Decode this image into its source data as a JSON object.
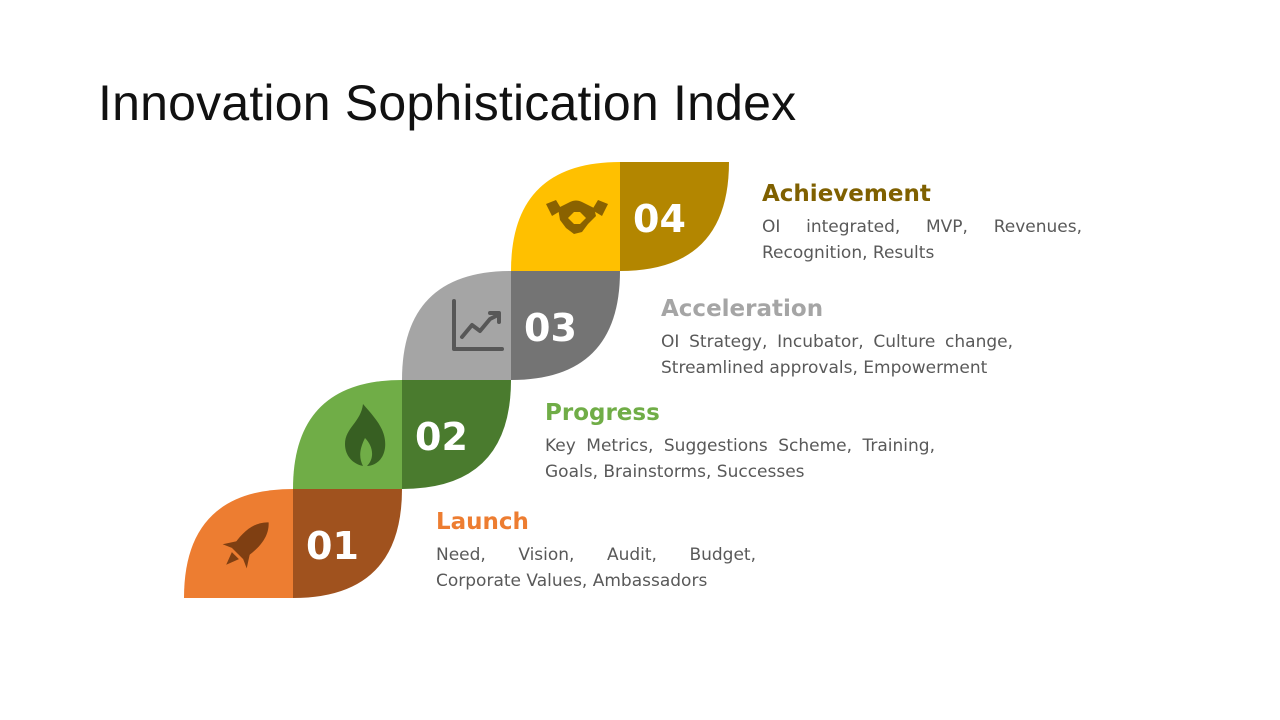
{
  "title": "Innovation Sophistication Index",
  "steps": [
    {
      "number": "01",
      "heading": "Launch",
      "description": "Need, Vision, Audit, Budget, Corporate Values, Ambassadors",
      "icon": "rocket-icon",
      "colors": {
        "left": "#ED7D31",
        "right": "#A0521E",
        "icon": "#7F3F12",
        "heading": "#ED7D31"
      }
    },
    {
      "number": "02",
      "heading": "Progress",
      "description": "Key Metrics, Suggestions Scheme, Training, Goals, Brainstorms, Successes",
      "icon": "flame-icon",
      "colors": {
        "left": "#70AD47",
        "right": "#4A7B2E",
        "icon": "#375F22",
        "heading": "#70AD47"
      }
    },
    {
      "number": "03",
      "heading": "Acceleration",
      "description": "OI Strategy, Incubator, Culture change, Streamlined approvals, Empowerment",
      "icon": "line-chart-icon",
      "colors": {
        "left": "#A5A5A5",
        "right": "#747474",
        "icon": "#575757",
        "heading": "#A5A5A5"
      }
    },
    {
      "number": "04",
      "heading": "Achievement",
      "description": "OI integrated, MVP, Revenues, Recognition, Results",
      "icon": "handshake-icon",
      "colors": {
        "left": "#FFC000",
        "right": "#B38600",
        "icon": "#8A6200",
        "heading": "#7F6000"
      }
    }
  ]
}
